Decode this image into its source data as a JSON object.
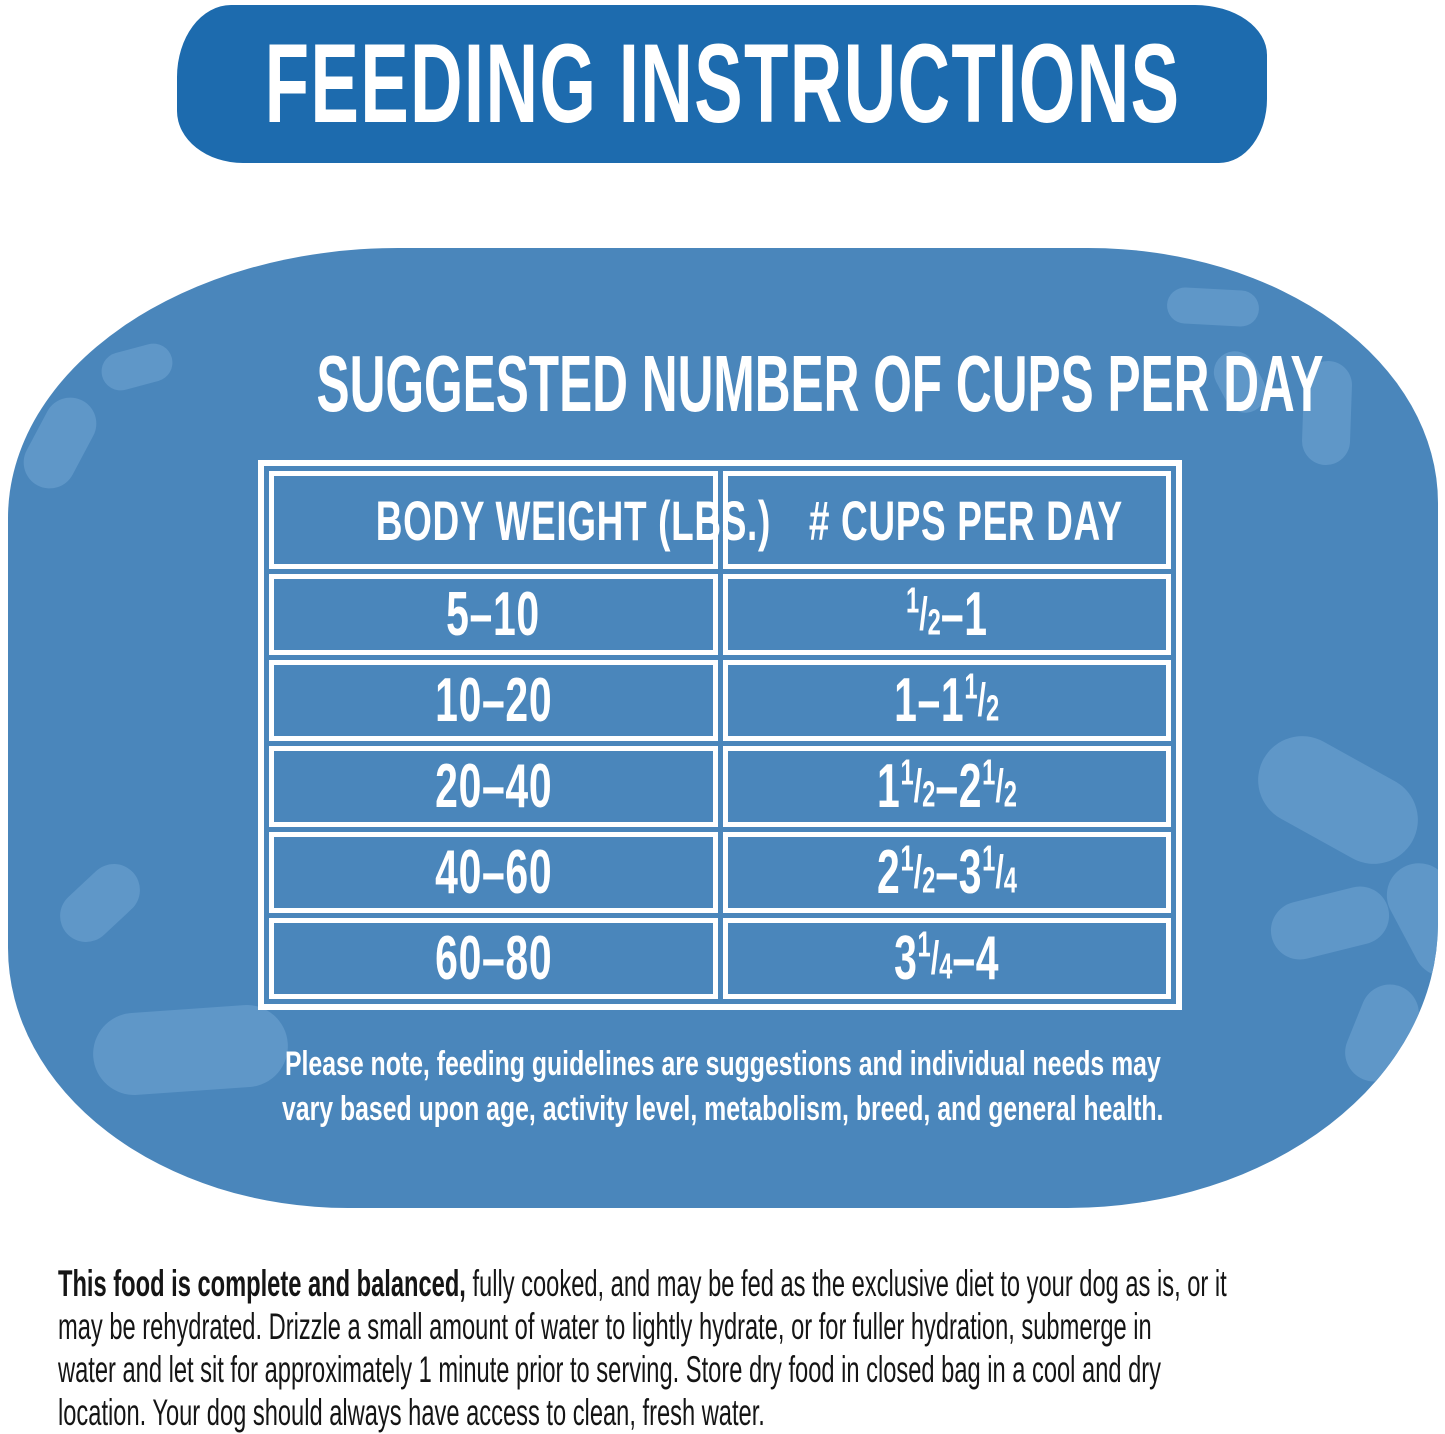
{
  "colors": {
    "banner_blue": "#1d6bae",
    "panel_blue": "#4a86bb",
    "kibble_blue": "#5f97c8",
    "ink": "#151515",
    "text_white": "#ffffff"
  },
  "banner": {
    "title": "FEEDING INSTRUCTIONS"
  },
  "panel": {
    "heading": "SUGGESTED NUMBER OF CUPS PER DAY",
    "table": {
      "columns": [
        "BODY WEIGHT (LBS.)",
        "# CUPS PER DAY"
      ],
      "rows": [
        {
          "weight": "5-10",
          "cups": "1/2-1"
        },
        {
          "weight": "10-20",
          "cups": "1-1 1/2"
        },
        {
          "weight": "20-40",
          "cups": "1 1/2-2 1/2"
        },
        {
          "weight": "40-60",
          "cups": "2 1/2-3 1/4"
        },
        {
          "weight": "60-80",
          "cups": "3 1/4-4"
        }
      ]
    },
    "note_line1": "Please note, feeding guidelines are suggestions and individual needs may",
    "note_line2": "vary based upon age, activity level, metabolism, breed, and general health."
  },
  "footer": {
    "bold_lead": "This food is complete and balanced,",
    "line1_rest": " fully cooked, and may be fed as the exclusive diet to your dog as is, or it",
    "line2": "may be rehydrated. Drizzle a small amount of water to lightly hydrate, or for fuller hydration, submerge in",
    "line3": "water and let sit for approximately 1 minute prior to serving. Store dry food in closed bag in a cool and dry",
    "line4": "location. Your dog should always have access to clean, fresh water."
  }
}
